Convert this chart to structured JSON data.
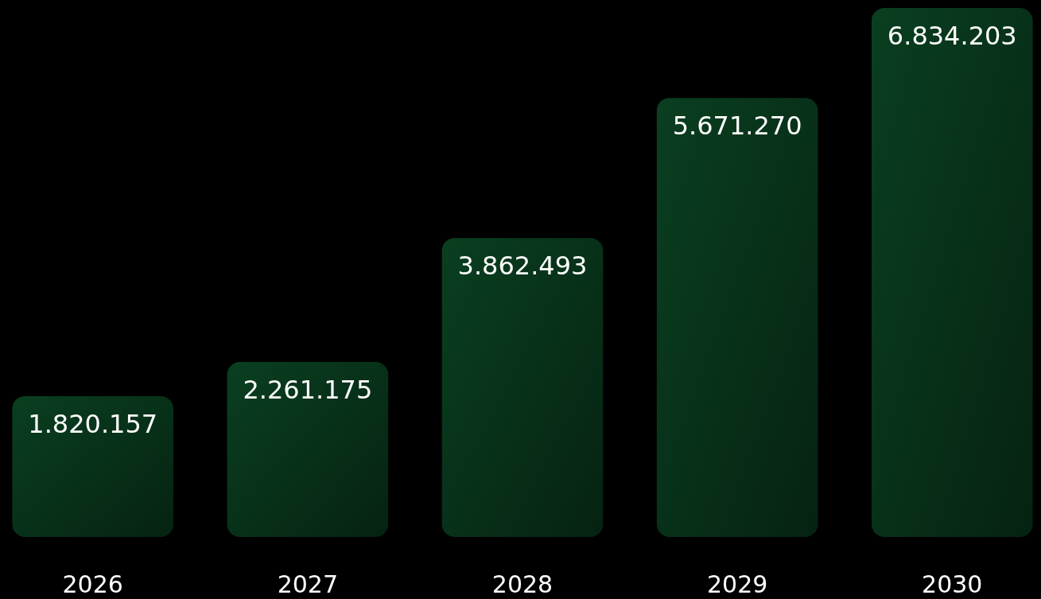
{
  "chart_data": {
    "type": "bar",
    "categories": [
      "2026",
      "2027",
      "2028",
      "2029",
      "2030"
    ],
    "values": [
      1820157,
      2261175,
      3862493,
      5671270,
      6834203
    ],
    "value_labels": [
      "1.820.157",
      "2.261.175",
      "3.862.493",
      "5.671.270",
      "6.834.203"
    ],
    "color": "#0a3f20"
  }
}
